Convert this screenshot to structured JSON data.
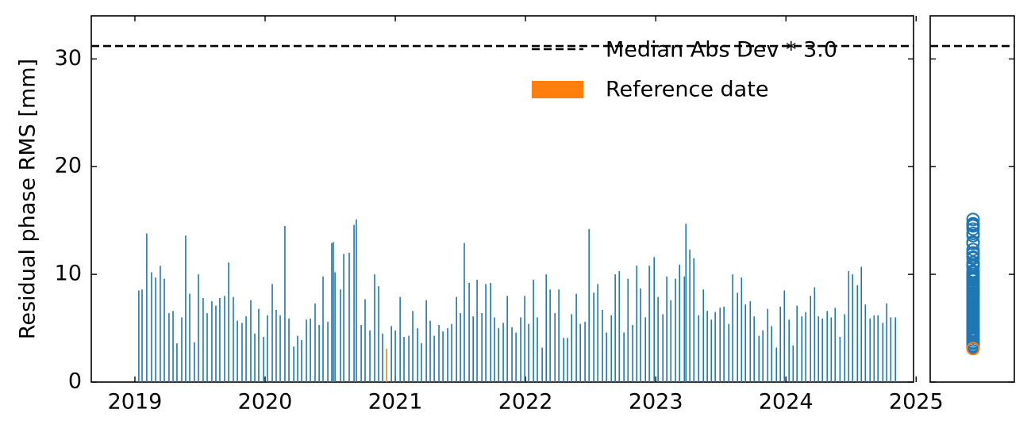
{
  "chart_data": {
    "type": "bar",
    "ylabel": "Residual phase RMS [mm]",
    "xlim": [
      2018.665,
      2024.98
    ],
    "ylim": [
      0,
      34
    ],
    "xticks": [
      2019,
      2020,
      2021,
      2022,
      2023,
      2024,
      2025
    ],
    "yticks": [
      0,
      10,
      20,
      30
    ],
    "legend": "upper right",
    "reference_line": {
      "value": 31.2,
      "label": "Median Abs Dev * 3.0",
      "color": "#000000"
    },
    "series": [
      {
        "color": "#1f77b4",
        "x": [
          2019.03,
          2019.055,
          2019.091,
          2019.128,
          2019.159,
          2019.195,
          2019.226,
          2019.262,
          2019.293,
          2019.323,
          2019.36,
          2019.39,
          2019.421,
          2019.457,
          2019.488,
          2019.524,
          2019.555,
          2019.591,
          2019.622,
          2019.652,
          2019.689,
          2019.72,
          2019.756,
          2019.787,
          2019.823,
          2019.854,
          2019.89,
          2019.921,
          2019.951,
          2019.988,
          2020.018,
          2020.055,
          2020.085,
          2020.116,
          2020.152,
          2020.183,
          2020.22,
          2020.25,
          2020.28,
          2020.317,
          2020.348,
          2020.384,
          2020.415,
          2020.445,
          2020.482,
          2020.512,
          2020.524,
          2020.537,
          2020.579,
          2020.604,
          2020.646,
          2020.683,
          2020.701,
          2020.738,
          2020.768,
          2020.805,
          2020.841,
          2020.872,
          2020.902,
          2020.97,
          2021.0,
          2021.037,
          2021.067,
          2021.104,
          2021.134,
          2021.171,
          2021.201,
          2021.238,
          2021.268,
          2021.299,
          2021.335,
          2021.366,
          2021.402,
          2021.433,
          2021.47,
          2021.5,
          2021.53,
          2021.567,
          2021.598,
          2021.628,
          2021.665,
          2021.695,
          2021.732,
          2021.762,
          2021.793,
          2021.829,
          2021.86,
          2021.896,
          2021.927,
          2021.963,
          2021.994,
          2022.024,
          2022.061,
          2022.091,
          2022.128,
          2022.159,
          2022.189,
          2022.226,
          2022.256,
          2022.293,
          2022.323,
          2022.354,
          2022.39,
          2022.421,
          2022.457,
          2022.488,
          2022.524,
          2022.555,
          2022.591,
          2022.622,
          2022.659,
          2022.689,
          2022.72,
          2022.756,
          2022.787,
          2022.823,
          2022.854,
          2022.884,
          2022.921,
          2022.951,
          2022.988,
          2023.018,
          2023.055,
          2023.085,
          2023.116,
          2023.152,
          2023.183,
          2023.22,
          2023.232,
          2023.262,
          2023.293,
          2023.329,
          2023.366,
          2023.396,
          2023.427,
          2023.457,
          2023.494,
          2023.524,
          2023.561,
          2023.591,
          2023.628,
          2023.659,
          2023.689,
          2023.726,
          2023.756,
          2023.793,
          2023.823,
          2023.86,
          2023.89,
          2023.927,
          2023.957,
          2023.988,
          2024.024,
          2024.055,
          2024.085,
          2024.122,
          2024.152,
          2024.189,
          2024.22,
          2024.25,
          2024.28,
          2024.317,
          2024.348,
          2024.378,
          2024.415,
          2024.451,
          2024.482,
          2024.512,
          2024.549,
          2024.579,
          2024.61,
          2024.646,
          2024.677,
          2024.707,
          2024.744,
          2024.774,
          2024.805,
          2024.841
        ],
        "values": [
          8.5,
          8.6,
          13.8,
          10.2,
          9.7,
          10.8,
          9.6,
          6.4,
          6.6,
          3.6,
          6.0,
          13.6,
          8.2,
          3.7,
          10.0,
          7.8,
          6.4,
          7.5,
          7.1,
          7.8,
          8.0,
          11.1,
          7.9,
          5.7,
          5.5,
          6.1,
          7.6,
          4.5,
          6.8,
          4.2,
          6.2,
          9.1,
          6.7,
          6.2,
          14.5,
          5.9,
          3.3,
          4.3,
          3.9,
          5.8,
          5.9,
          7.3,
          5.3,
          9.8,
          5.6,
          12.9,
          13.0,
          10.2,
          8.6,
          11.9,
          12.0,
          14.6,
          15.1,
          5.3,
          7.7,
          4.8,
          10.0,
          8.9,
          4.5,
          5.2,
          4.8,
          7.9,
          4.2,
          4.3,
          6.6,
          5.0,
          3.6,
          7.6,
          5.7,
          4.3,
          5.3,
          4.7,
          5.0,
          5.4,
          7.9,
          6.4,
          12.9,
          9.2,
          6.1,
          9.5,
          6.4,
          9.1,
          9.2,
          6.0,
          5.0,
          5.5,
          8.0,
          5.1,
          4.6,
          6.0,
          8.0,
          5.4,
          9.5,
          6.0,
          3.2,
          10.0,
          8.6,
          6.4,
          8.6,
          4.1,
          4.1,
          6.3,
          8.2,
          5.4,
          5.6,
          14.2,
          8.3,
          9.1,
          6.7,
          4.6,
          6.2,
          10.0,
          10.3,
          4.6,
          9.6,
          5.3,
          10.8,
          8.7,
          6.0,
          10.8,
          11.6,
          7.9,
          6.3,
          9.8,
          7.6,
          9.6,
          10.9,
          9.8,
          14.7,
          12.3,
          11.5,
          6.2,
          8.6,
          6.6,
          5.8,
          6.5,
          6.9,
          7.0,
          5.4,
          10.0,
          8.3,
          9.7,
          7.2,
          7.5,
          6.1,
          4.3,
          4.8,
          6.8,
          5.2,
          3.2,
          7.0,
          8.5,
          5.8,
          3.4,
          7.1,
          6.1,
          6.5,
          8.0,
          8.8,
          6.1,
          5.9,
          6.6,
          6.0,
          6.9,
          4.2,
          6.3,
          10.3,
          10.0,
          9.0,
          10.7,
          7.2,
          5.9,
          6.2,
          6.2,
          5.5,
          7.3,
          6.0,
          6.0
        ]
      },
      {
        "name": "Reference date",
        "color": "#ff7f0e",
        "x": [
          2020.933
        ],
        "values": [
          3.1
        ]
      }
    ]
  }
}
